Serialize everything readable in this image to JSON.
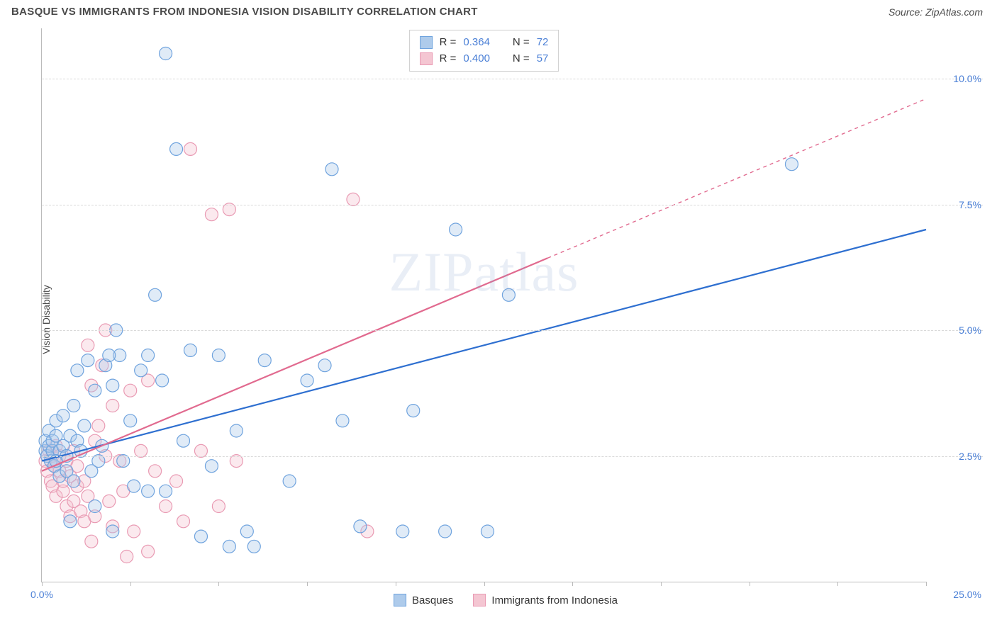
{
  "title": "BASQUE VS IMMIGRANTS FROM INDONESIA VISION DISABILITY CORRELATION CHART",
  "source": "Source: ZipAtlas.com",
  "ylabel": "Vision Disability",
  "watermark": "ZIPatlas",
  "chart": {
    "type": "scatter-with-regression",
    "background_color": "#ffffff",
    "grid_color": "#d9d9d9",
    "axis_color": "#bbbbbb",
    "xlim": [
      0,
      25
    ],
    "ylim": [
      0,
      11
    ],
    "xticks": [
      0,
      2.5,
      5,
      7.5,
      10,
      12.5,
      15,
      17.5,
      20,
      22.5,
      25
    ],
    "yticks": [
      2.5,
      5.0,
      7.5,
      10.0
    ],
    "xtick_labels": {
      "0": "0.0%",
      "25": "25.0%"
    },
    "ytick_labels": {
      "2.5": "2.5%",
      "5.0": "5.0%",
      "7.5": "7.5%",
      "10.0": "10.0%"
    },
    "tick_label_color": "#4a7fd6",
    "tick_label_fontsize": 14,
    "marker_radius": 9,
    "marker_fill_opacity": 0.38,
    "marker_stroke_width": 1.2,
    "regression_line_width": 2.2
  },
  "series": [
    {
      "name": "Basques",
      "color_fill": "#aecbeb",
      "color_stroke": "#6fa3de",
      "line_color": "#2e6fd0",
      "R": "0.364",
      "N": "72",
      "regression": {
        "x1": 0,
        "y1": 2.4,
        "x2": 25,
        "y2": 7.0,
        "dashed_from_x": null
      },
      "points": [
        [
          0.1,
          2.6
        ],
        [
          0.1,
          2.8
        ],
        [
          0.15,
          2.5
        ],
        [
          0.2,
          2.7
        ],
        [
          0.2,
          3.0
        ],
        [
          0.25,
          2.4
        ],
        [
          0.3,
          2.6
        ],
        [
          0.3,
          2.8
        ],
        [
          0.35,
          2.3
        ],
        [
          0.4,
          2.9
        ],
        [
          0.4,
          3.2
        ],
        [
          0.5,
          2.6
        ],
        [
          0.5,
          2.1
        ],
        [
          0.6,
          3.3
        ],
        [
          0.6,
          2.7
        ],
        [
          0.7,
          2.5
        ],
        [
          0.8,
          2.9
        ],
        [
          0.8,
          1.2
        ],
        [
          0.9,
          3.5
        ],
        [
          1.0,
          2.8
        ],
        [
          1.0,
          4.2
        ],
        [
          1.1,
          2.6
        ],
        [
          1.2,
          3.1
        ],
        [
          1.3,
          4.4
        ],
        [
          1.4,
          2.2
        ],
        [
          1.5,
          3.8
        ],
        [
          1.5,
          1.5
        ],
        [
          1.7,
          2.7
        ],
        [
          1.8,
          4.3
        ],
        [
          2.0,
          3.9
        ],
        [
          2.0,
          1.0
        ],
        [
          2.2,
          4.5
        ],
        [
          2.3,
          2.4
        ],
        [
          2.5,
          3.2
        ],
        [
          2.6,
          1.9
        ],
        [
          2.8,
          4.2
        ],
        [
          3.0,
          4.5
        ],
        [
          3.0,
          1.8
        ],
        [
          3.2,
          5.7
        ],
        [
          3.4,
          4.0
        ],
        [
          3.5,
          1.8
        ],
        [
          3.5,
          10.5
        ],
        [
          3.8,
          8.6
        ],
        [
          4.0,
          2.8
        ],
        [
          4.2,
          4.6
        ],
        [
          4.5,
          0.9
        ],
        [
          4.8,
          2.3
        ],
        [
          5.0,
          4.5
        ],
        [
          5.3,
          0.7
        ],
        [
          5.5,
          3.0
        ],
        [
          5.8,
          1.0
        ],
        [
          6.0,
          0.7
        ],
        [
          6.3,
          4.4
        ],
        [
          7.0,
          2.0
        ],
        [
          7.5,
          4.0
        ],
        [
          8.0,
          4.3
        ],
        [
          8.2,
          8.2
        ],
        [
          8.5,
          3.2
        ],
        [
          9.0,
          1.1
        ],
        [
          10.2,
          1.0
        ],
        [
          10.5,
          3.4
        ],
        [
          11.4,
          1.0
        ],
        [
          11.7,
          7.0
        ],
        [
          12.6,
          1.0
        ],
        [
          13.2,
          5.7
        ],
        [
          21.2,
          8.3
        ],
        [
          0.7,
          2.2
        ],
        [
          0.9,
          2.0
        ],
        [
          1.6,
          2.4
        ],
        [
          1.9,
          4.5
        ],
        [
          2.1,
          5.0
        ],
        [
          0.4,
          2.4
        ]
      ]
    },
    {
      "name": "Immigrants from Indonesia",
      "color_fill": "#f4c6d2",
      "color_stroke": "#e99ab3",
      "line_color": "#e16a8f",
      "R": "0.400",
      "N": "57",
      "regression": {
        "x1": 0,
        "y1": 2.2,
        "x2": 25,
        "y2": 9.6,
        "dashed_from_x": 14.3
      },
      "points": [
        [
          0.1,
          2.4
        ],
        [
          0.15,
          2.2
        ],
        [
          0.2,
          2.6
        ],
        [
          0.25,
          2.0
        ],
        [
          0.3,
          2.5
        ],
        [
          0.3,
          1.9
        ],
        [
          0.35,
          2.3
        ],
        [
          0.4,
          2.7
        ],
        [
          0.4,
          1.7
        ],
        [
          0.5,
          2.2
        ],
        [
          0.5,
          2.5
        ],
        [
          0.6,
          1.8
        ],
        [
          0.6,
          2.0
        ],
        [
          0.7,
          2.4
        ],
        [
          0.7,
          1.5
        ],
        [
          0.8,
          2.1
        ],
        [
          0.8,
          1.3
        ],
        [
          0.9,
          2.6
        ],
        [
          0.9,
          1.6
        ],
        [
          1.0,
          2.3
        ],
        [
          1.0,
          1.9
        ],
        [
          1.1,
          1.4
        ],
        [
          1.2,
          2.0
        ],
        [
          1.2,
          1.2
        ],
        [
          1.3,
          1.7
        ],
        [
          1.3,
          4.7
        ],
        [
          1.4,
          3.9
        ],
        [
          1.5,
          2.8
        ],
        [
          1.5,
          1.3
        ],
        [
          1.6,
          3.1
        ],
        [
          1.7,
          4.3
        ],
        [
          1.8,
          2.5
        ],
        [
          1.8,
          5.0
        ],
        [
          1.9,
          1.6
        ],
        [
          2.0,
          3.5
        ],
        [
          2.0,
          1.1
        ],
        [
          2.2,
          2.4
        ],
        [
          2.3,
          1.8
        ],
        [
          2.5,
          3.8
        ],
        [
          2.6,
          1.0
        ],
        [
          2.8,
          2.6
        ],
        [
          3.0,
          0.6
        ],
        [
          3.0,
          4.0
        ],
        [
          3.2,
          2.2
        ],
        [
          3.5,
          1.5
        ],
        [
          3.8,
          2.0
        ],
        [
          4.0,
          1.2
        ],
        [
          4.2,
          8.6
        ],
        [
          4.5,
          2.6
        ],
        [
          4.8,
          7.3
        ],
        [
          5.0,
          1.5
        ],
        [
          5.3,
          7.4
        ],
        [
          5.5,
          2.4
        ],
        [
          8.8,
          7.6
        ],
        [
          9.2,
          1.0
        ],
        [
          1.4,
          0.8
        ],
        [
          2.4,
          0.5
        ]
      ]
    }
  ],
  "legend_top": {
    "label_R": "R =",
    "label_N": "N ="
  },
  "legend_bottom": {
    "items": [
      "Basques",
      "Immigrants from Indonesia"
    ]
  }
}
